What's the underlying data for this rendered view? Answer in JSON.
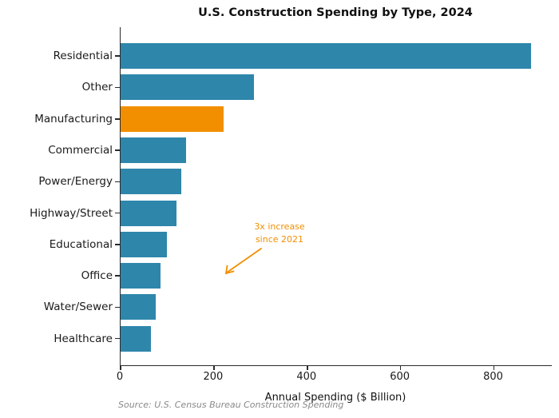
{
  "figure": {
    "title": "U.S. Construction Spending by Type, 2024",
    "xlabel": "Annual Spending ($ Billion)",
    "source_note": "Source: U.S. Census Bureau Construction Spending"
  },
  "annotation": {
    "line1": "3x increase",
    "line2": "since 2021",
    "refers_to": "Manufacturing"
  },
  "colors": {
    "bar_blue": "#2E86AB",
    "bar_highlight_orange": "#F18F01",
    "annotation_orange": "#F18F01",
    "axis_line": "#2b2b2b",
    "text": "#1a1a1a",
    "source_gray": "#8a8a8a"
  },
  "chart_data": {
    "type": "bar",
    "orientation": "horizontal",
    "title": "U.S. Construction Spending by Type, 2024",
    "xlabel": "Annual Spending ($ Billion)",
    "ylabel": "",
    "categories": [
      "Residential",
      "Other",
      "Manufacturing",
      "Commercial",
      "Power/Energy",
      "Highway/Street",
      "Educational",
      "Office",
      "Water/Sewer",
      "Healthcare"
    ],
    "values": [
      880,
      285,
      220,
      140,
      130,
      120,
      100,
      85,
      75,
      65
    ],
    "highlight_index": 2,
    "highlight_category": "Manufacturing",
    "xlim": [
      0,
      924
    ],
    "xticks": [
      0,
      200,
      400,
      600,
      800
    ],
    "grid": false,
    "legend": false,
    "annotation": {
      "text": "3x increase\nsince 2021",
      "target": "Manufacturing"
    }
  }
}
